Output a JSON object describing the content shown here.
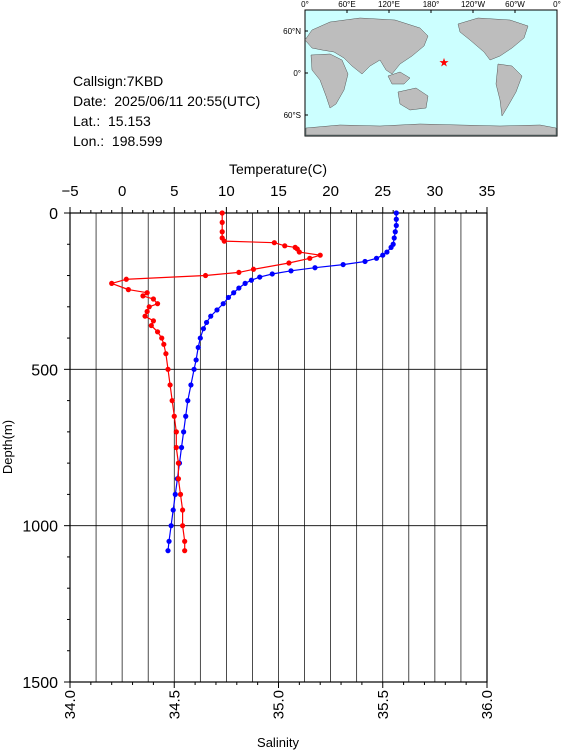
{
  "station": {
    "callsign_text": "Callsign:7KBD",
    "date_text": "Date:  2025/06/11 20:55(UTC)",
    "lat_text": "Lat.:  15.153",
    "lon_text": "Lon.:  198.599"
  },
  "map": {
    "lon_ticks": [
      "0°",
      "60°E",
      "120°E",
      "180°",
      "120°W",
      "60°W",
      "0°"
    ],
    "lat_ticks": [
      "60°N",
      "0°",
      "60°S"
    ],
    "station_lat": 15.153,
    "station_lon": 198.599,
    "colors": {
      "ocean": "#ccffff",
      "land": "#bdbdbd",
      "marker": "#ff0000"
    }
  },
  "chart_data": {
    "type": "line",
    "ylabel": "Depth(m)",
    "ylim": [
      1500,
      0
    ],
    "yticks": [
      0,
      500,
      1000,
      1500
    ],
    "top_axis": {
      "label": "Temperature(C)",
      "range": [
        -5,
        35
      ],
      "ticks": [
        -5,
        0,
        5,
        10,
        15,
        20,
        25,
        30,
        35
      ]
    },
    "bottom_axis": {
      "label": "Salinity",
      "range": [
        34.0,
        36.0
      ],
      "ticks": [
        "34.0",
        "34.5",
        "35.0",
        "35.5",
        "36.0"
      ]
    },
    "grid": true,
    "series": [
      {
        "quantity": "temperature",
        "axis": "top",
        "color": "#0000ff",
        "points": [
          [
            0,
            26.3
          ],
          [
            20,
            26.3
          ],
          [
            40,
            26.3
          ],
          [
            60,
            26.2
          ],
          [
            80,
            26.1
          ],
          [
            100,
            26.0
          ],
          [
            110,
            25.8
          ],
          [
            125,
            25.4
          ],
          [
            135,
            25.0
          ],
          [
            145,
            24.4
          ],
          [
            155,
            23.3
          ],
          [
            165,
            21.2
          ],
          [
            175,
            18.5
          ],
          [
            185,
            16.2
          ],
          [
            195,
            14.4
          ],
          [
            205,
            13.2
          ],
          [
            215,
            12.4
          ],
          [
            225,
            11.8
          ],
          [
            240,
            11.2
          ],
          [
            255,
            10.7
          ],
          [
            270,
            10.2
          ],
          [
            290,
            9.7
          ],
          [
            310,
            9.1
          ],
          [
            330,
            8.5
          ],
          [
            350,
            8.1
          ],
          [
            370,
            7.8
          ],
          [
            400,
            7.5
          ],
          [
            430,
            7.3
          ],
          [
            470,
            7.1
          ],
          [
            500,
            6.9
          ],
          [
            550,
            6.6
          ],
          [
            600,
            6.3
          ],
          [
            650,
            6.1
          ],
          [
            700,
            5.9
          ],
          [
            750,
            5.7
          ],
          [
            800,
            5.5
          ],
          [
            850,
            5.3
          ],
          [
            900,
            5.1
          ],
          [
            950,
            4.9
          ],
          [
            1000,
            4.7
          ],
          [
            1050,
            4.5
          ],
          [
            1080,
            4.4
          ]
        ]
      },
      {
        "quantity": "salinity",
        "axis": "bottom",
        "color": "#ff0000",
        "points": [
          [
            0,
            34.73
          ],
          [
            30,
            34.73
          ],
          [
            60,
            34.73
          ],
          [
            80,
            34.73
          ],
          [
            90,
            34.74
          ],
          [
            95,
            34.98
          ],
          [
            105,
            35.03
          ],
          [
            110,
            35.08
          ],
          [
            115,
            35.09
          ],
          [
            125,
            35.1
          ],
          [
            135,
            35.2
          ],
          [
            145,
            35.15
          ],
          [
            160,
            35.05
          ],
          [
            180,
            34.88
          ],
          [
            190,
            34.81
          ],
          [
            200,
            34.65
          ],
          [
            212,
            34.27
          ],
          [
            225,
            34.2
          ],
          [
            245,
            34.28
          ],
          [
            255,
            34.37
          ],
          [
            265,
            34.35
          ],
          [
            275,
            34.4
          ],
          [
            290,
            34.42
          ],
          [
            300,
            34.38
          ],
          [
            315,
            34.37
          ],
          [
            330,
            34.36
          ],
          [
            345,
            34.4
          ],
          [
            360,
            34.39
          ],
          [
            380,
            34.42
          ],
          [
            400,
            34.44
          ],
          [
            420,
            34.45
          ],
          [
            450,
            34.46
          ],
          [
            500,
            34.47
          ],
          [
            550,
            34.48
          ],
          [
            600,
            34.49
          ],
          [
            650,
            34.5
          ],
          [
            700,
            34.51
          ],
          [
            750,
            34.51
          ],
          [
            800,
            34.52
          ],
          [
            850,
            34.52
          ],
          [
            900,
            34.53
          ],
          [
            950,
            34.54
          ],
          [
            1000,
            34.54
          ],
          [
            1050,
            34.55
          ],
          [
            1080,
            34.55
          ]
        ]
      }
    ]
  }
}
